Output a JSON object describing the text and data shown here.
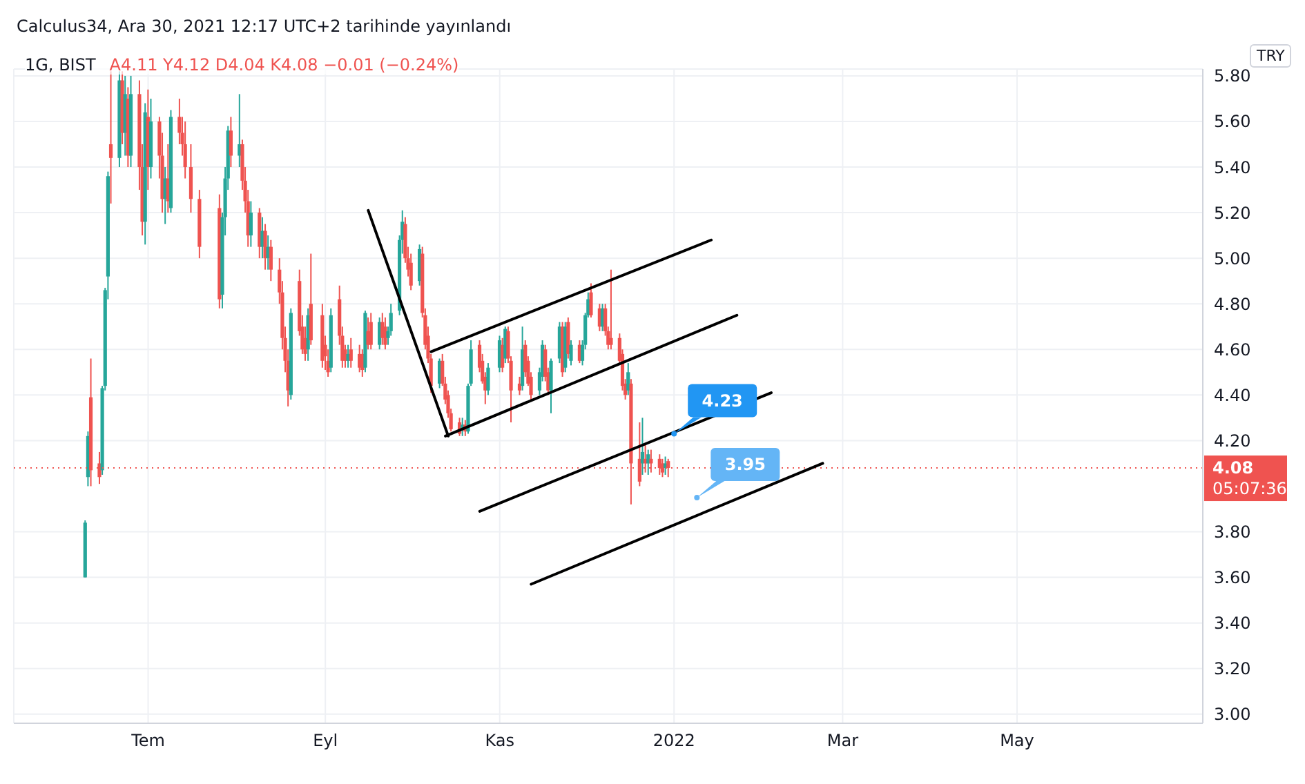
{
  "chart_data": {
    "type": "candlestick",
    "title": "1G, BIST",
    "subtitle": "A4.11 Y4.12 D4.04 K4.08 −0.01 (−0.24%)",
    "annotations": [
      "Calculus34, Ara 30, 2021 12:17 UTC+2 tarihinde yayınlandı",
      "TRY",
      "05:07:36",
      {
        "text": "4.23",
        "x": "2022-01-01",
        "y": 4.23
      },
      {
        "text": "3.95",
        "x": "2022-01-09",
        "y": 3.95
      }
    ],
    "colors": [
      "#26a69a",
      "#26a69a",
      "#ef5350",
      "#ef5350",
      "#26a69a",
      "#26a69a",
      "#26a69a",
      "#ef5350",
      "#26a69a",
      "#ef5350",
      "#26a69a",
      "#ef5350",
      "#26a69a",
      "#ef5350",
      "#ef5350",
      "#26a69a",
      "#ef5350",
      "#26a69a",
      "#ef5350",
      "#ef5350",
      "#26a69a",
      "#ef5350",
      "#26a69a",
      "#ef5350",
      "#ef5350",
      "#ef5350",
      "#ef5350",
      "#ef5350",
      "#ef5350",
      "#26a69a",
      "#26a69a",
      "#26a69a",
      "#ef5350",
      "#26a69a",
      "#ef5350",
      "#ef5350",
      "#ef5350",
      "#26a69a",
      "#ef5350",
      "#26a69a",
      "#ef5350",
      "#26a69a",
      "#ef5350",
      "#ef5350",
      "#ef5350",
      "#ef5350",
      "#ef5350",
      "#26a69a",
      "#ef5350",
      "#ef5350",
      "#ef5350",
      "#26a69a",
      "#ef5350",
      "#ef5350",
      "#ef5350",
      "#ef5350",
      "#26a69a",
      "#ef5350",
      "#ef5350",
      "#ef5350",
      "#26a69a",
      "#ef5350",
      "#ef5350",
      "#ef5350",
      "#26a69a",
      "#ef5350",
      "#ef5350",
      "#26a69a",
      "#ef5350",
      "#ef5350",
      "#26a69a",
      "#26a69a",
      "#26a69a",
      "#26a69a",
      "#ef5350",
      "#ef5350",
      "#ef5350",
      "#26a69a",
      "#ef5350",
      "#ef5350",
      "#ef5350",
      "#ef5350",
      "#26a69a",
      "#ef5350",
      "#ef5350",
      "#ef5350",
      "#ef5350",
      "#ef5350",
      "#26a69a",
      "#ef5350",
      "#26a69a",
      "#26a69a",
      "#ef5350",
      "#ef5350",
      "#ef5350",
      "#26a69a",
      "#26a69a",
      "#ef5350",
      "#26a69a",
      "#ef5350",
      "#ef5350",
      "#ef5350",
      "#26a69a",
      "#ef5350",
      "#ef5350",
      "#ef5350",
      "#26a69a",
      "#26a69a",
      "#ef5350",
      "#ef5350",
      "#26a69a",
      "#26a69a",
      "#ef5350",
      "#26a69a",
      "#ef5350",
      "#26a69a",
      "#ef5350",
      "#26a69a",
      "#26a69a",
      "#26a69a",
      "#ef5350",
      "#ef5350",
      "#26a69a",
      "#ef5350",
      "#ef5350",
      "#ef5350",
      "#ef5350",
      "#ef5350",
      "#ef5350",
      "#26a69a",
      "#ef5350",
      "#ef5350",
      "#26a69a",
      "#ef5350",
      "#26a69a",
      "#ef5350",
      "#ef5350",
      "#ef5350",
      "#26a69a",
      "#ef5350"
    ],
    "x": [
      "2021-06-09",
      "2021-06-10",
      "2021-06-11",
      "2021-06-14",
      "2021-06-15",
      "2021-06-16",
      "2021-06-17",
      "2021-06-18",
      "2021-06-21",
      "2021-06-22",
      "2021-06-23",
      "2021-06-24",
      "2021-06-25",
      "2021-06-28",
      "2021-06-29",
      "2021-06-30",
      "2021-07-01",
      "2021-07-02",
      "2021-07-05",
      "2021-07-06",
      "2021-07-07",
      "2021-07-08",
      "2021-07-09",
      "2021-07-12",
      "2021-07-13",
      "2021-07-14",
      "2021-07-16",
      "2021-07-19",
      "2021-07-26",
      "2021-07-27",
      "2021-07-28",
      "2021-07-29",
      "2021-07-30",
      "2021-08-02",
      "2021-08-03",
      "2021-08-04",
      "2021-08-05",
      "2021-08-06",
      "2021-08-09",
      "2021-08-10",
      "2021-08-11",
      "2021-08-12",
      "2021-08-13",
      "2021-08-16",
      "2021-08-17",
      "2021-08-18",
      "2021-08-19",
      "2021-08-20",
      "2021-08-23",
      "2021-08-24",
      "2021-08-25",
      "2021-08-26",
      "2021-08-27",
      "2021-08-31",
      "2021-09-01",
      "2021-09-02",
      "2021-09-03",
      "2021-09-06",
      "2021-09-07",
      "2021-09-08",
      "2021-09-09",
      "2021-09-10",
      "2021-09-13",
      "2021-09-14",
      "2021-09-15",
      "2021-09-16",
      "2021-09-17",
      "2021-09-20",
      "2021-09-21",
      "2021-09-22",
      "2021-09-23",
      "2021-09-24",
      "2021-09-27",
      "2021-09-28",
      "2021-09-29",
      "2021-09-30",
      "2021-10-01",
      "2021-10-04",
      "2021-10-05",
      "2021-10-06",
      "2021-10-07",
      "2021-10-08",
      "2021-10-11",
      "2021-10-12",
      "2021-10-13",
      "2021-10-14",
      "2021-10-15",
      "2021-10-18",
      "2021-10-19",
      "2021-10-20",
      "2021-10-21",
      "2021-10-22",
      "2021-10-25",
      "2021-10-26",
      "2021-10-27",
      "2021-10-28",
      "2021-11-01",
      "2021-11-02",
      "2021-11-03",
      "2021-11-04",
      "2021-11-05",
      "2021-11-08",
      "2021-11-09",
      "2021-11-10",
      "2021-11-11",
      "2021-11-12",
      "2021-11-15",
      "2021-11-16",
      "2021-11-17",
      "2021-11-18",
      "2021-11-19",
      "2021-11-22",
      "2021-11-23",
      "2021-11-24",
      "2021-11-25",
      "2021-11-26",
      "2021-11-29",
      "2021-11-30",
      "2021-12-01",
      "2021-12-02",
      "2021-12-03",
      "2021-12-06",
      "2021-12-07",
      "2021-12-08",
      "2021-12-09",
      "2021-12-10",
      "2021-12-13",
      "2021-12-14",
      "2021-12-15",
      "2021-12-16",
      "2021-12-17",
      "2021-12-20",
      "2021-12-21",
      "2021-12-22",
      "2021-12-23",
      "2021-12-24",
      "2021-12-27",
      "2021-12-28",
      "2021-12-29",
      "2021-12-30"
    ],
    "ohlc": [
      [
        3.6,
        3.85,
        3.6,
        3.84
      ],
      [
        4.04,
        4.24,
        4.0,
        4.22
      ],
      [
        4.39,
        4.56,
        4.0,
        4.07
      ],
      [
        4.1,
        4.15,
        4.01,
        4.04
      ],
      [
        4.07,
        4.44,
        4.05,
        4.43
      ],
      [
        4.44,
        4.87,
        4.42,
        4.86
      ],
      [
        4.92,
        5.38,
        4.82,
        5.36
      ],
      [
        5.5,
        5.82,
        5.24,
        5.44
      ],
      [
        5.44,
        5.82,
        5.4,
        5.78
      ],
      [
        5.78,
        5.82,
        5.5,
        5.55
      ],
      [
        5.55,
        5.8,
        5.45,
        5.72
      ],
      [
        5.7,
        5.75,
        5.4,
        5.45
      ],
      [
        5.45,
        5.8,
        5.4,
        5.72
      ],
      [
        5.72,
        5.78,
        5.3,
        5.4
      ],
      [
        5.4,
        5.5,
        5.1,
        5.16
      ],
      [
        5.16,
        5.68,
        5.06,
        5.64
      ],
      [
        5.62,
        5.74,
        5.3,
        5.4
      ],
      [
        5.4,
        5.7,
        5.35,
        5.6
      ],
      [
        5.6,
        5.62,
        5.35,
        5.45
      ],
      [
        5.45,
        5.55,
        5.2,
        5.26
      ],
      [
        5.26,
        5.4,
        5.15,
        5.35
      ],
      [
        5.35,
        5.5,
        5.2,
        5.25
      ],
      [
        5.22,
        5.65,
        5.2,
        5.62
      ],
      [
        5.62,
        5.7,
        5.5,
        5.55
      ],
      [
        5.55,
        5.62,
        5.45,
        5.5
      ],
      [
        5.5,
        5.6,
        5.35,
        5.4
      ],
      [
        5.4,
        5.5,
        5.2,
        5.26
      ],
      [
        5.26,
        5.3,
        5.0,
        5.05
      ],
      [
        5.22,
        5.28,
        4.78,
        4.82
      ],
      [
        4.84,
        5.2,
        4.78,
        5.18
      ],
      [
        5.18,
        5.4,
        5.1,
        5.35
      ],
      [
        5.35,
        5.58,
        5.3,
        5.56
      ],
      [
        5.56,
        5.62,
        5.4,
        5.45
      ],
      [
        5.45,
        5.72,
        5.4,
        5.5
      ],
      [
        5.5,
        5.52,
        5.3,
        5.34
      ],
      [
        5.34,
        5.4,
        5.2,
        5.25
      ],
      [
        5.25,
        5.3,
        5.05,
        5.1
      ],
      [
        5.1,
        5.25,
        5.05,
        5.2
      ],
      [
        5.2,
        5.22,
        5.0,
        5.05
      ],
      [
        5.05,
        5.18,
        5.0,
        5.12
      ],
      [
        5.12,
        5.15,
        4.95,
        5.0
      ],
      [
        5.0,
        5.1,
        4.95,
        5.05
      ],
      [
        5.05,
        5.08,
        4.9,
        4.95
      ],
      [
        4.95,
        5.0,
        4.8,
        4.85
      ],
      [
        4.85,
        4.9,
        4.6,
        4.65
      ],
      [
        4.65,
        4.7,
        4.5,
        4.55
      ],
      [
        4.55,
        4.6,
        4.35,
        4.42
      ],
      [
        4.4,
        4.78,
        4.38,
        4.76
      ],
      [
        4.9,
        4.95,
        4.66,
        4.68
      ],
      [
        4.7,
        4.75,
        4.58,
        4.6
      ],
      [
        4.65,
        4.7,
        4.55,
        4.58
      ],
      [
        4.6,
        4.78,
        4.55,
        4.75
      ],
      [
        4.8,
        5.02,
        4.62,
        4.64
      ],
      [
        4.75,
        4.8,
        4.52,
        4.55
      ],
      [
        4.62,
        4.66,
        4.51,
        4.57
      ],
      [
        4.55,
        4.6,
        4.48,
        4.5
      ],
      [
        4.52,
        4.78,
        4.5,
        4.75
      ],
      [
        4.82,
        4.88,
        4.62,
        4.66
      ],
      [
        4.66,
        4.7,
        4.52,
        4.55
      ],
      [
        4.6,
        4.62,
        4.52,
        4.55
      ],
      [
        4.55,
        4.62,
        4.52,
        4.58
      ],
      [
        4.6,
        4.65,
        4.52,
        4.55
      ],
      [
        4.58,
        4.62,
        4.5,
        4.52
      ],
      [
        4.58,
        4.6,
        4.48,
        4.51
      ],
      [
        4.52,
        4.77,
        4.5,
        4.76
      ],
      [
        4.68,
        4.74,
        4.6,
        4.62
      ],
      [
        4.72,
        4.76,
        4.6,
        4.62
      ],
      [
        4.62,
        4.74,
        4.6,
        4.72
      ],
      [
        4.72,
        4.76,
        4.62,
        4.65
      ],
      [
        4.7,
        4.74,
        4.6,
        4.62
      ],
      [
        4.65,
        4.7,
        4.62,
        4.68
      ],
      [
        4.68,
        4.8,
        4.66,
        4.76
      ],
      [
        4.77,
        5.1,
        4.75,
        5.08
      ],
      [
        5.08,
        5.21,
        5.02,
        5.16
      ],
      [
        5.15,
        5.18,
        4.98,
        5.0
      ],
      [
        5.0,
        5.05,
        4.92,
        4.95
      ],
      [
        4.98,
        5.02,
        4.86,
        4.88
      ],
      [
        4.9,
        5.06,
        4.88,
        5.04
      ],
      [
        5.02,
        5.05,
        4.74,
        4.76
      ],
      [
        4.75,
        4.78,
        4.6,
        4.62
      ],
      [
        4.66,
        4.7,
        4.54,
        4.56
      ],
      [
        4.56,
        4.58,
        4.41,
        4.44
      ],
      [
        4.45,
        4.56,
        4.43,
        4.55
      ],
      [
        4.55,
        4.58,
        4.44,
        4.45
      ],
      [
        4.45,
        4.48,
        4.36,
        4.38
      ],
      [
        4.4,
        4.42,
        4.3,
        4.32
      ],
      [
        4.32,
        4.34,
        4.24,
        4.25
      ],
      [
        4.28,
        4.3,
        4.22,
        4.23
      ],
      [
        4.25,
        4.3,
        4.22,
        4.27
      ],
      [
        4.27,
        4.29,
        4.22,
        4.24
      ],
      [
        4.24,
        4.45,
        4.23,
        4.44
      ],
      [
        4.45,
        4.64,
        4.44,
        4.6
      ],
      [
        4.62,
        4.64,
        4.5,
        4.52
      ],
      [
        4.55,
        4.58,
        4.45,
        4.46
      ],
      [
        4.48,
        4.5,
        4.36,
        4.42
      ],
      [
        4.42,
        4.54,
        4.4,
        4.52
      ],
      [
        4.52,
        4.66,
        4.5,
        4.64
      ],
      [
        4.62,
        4.65,
        4.5,
        4.52
      ],
      [
        4.56,
        4.7,
        4.54,
        4.69
      ],
      [
        4.68,
        4.7,
        4.54,
        4.56
      ],
      [
        4.55,
        4.57,
        4.28,
        4.42
      ],
      [
        4.45,
        4.48,
        4.4,
        4.42
      ],
      [
        4.44,
        4.7,
        4.42,
        4.6
      ],
      [
        4.62,
        4.64,
        4.48,
        4.5
      ],
      [
        4.55,
        4.57,
        4.44,
        4.45
      ],
      [
        4.48,
        4.5,
        4.38,
        4.4
      ],
      [
        4.42,
        4.52,
        4.4,
        4.5
      ],
      [
        4.48,
        4.64,
        4.46,
        4.62
      ],
      [
        4.6,
        4.62,
        4.46,
        4.48
      ],
      [
        4.5,
        4.52,
        4.4,
        4.42
      ],
      [
        4.42,
        4.56,
        4.32,
        4.55
      ],
      [
        4.56,
        4.72,
        4.54,
        4.7
      ],
      [
        4.7,
        4.72,
        4.48,
        4.5
      ],
      [
        4.52,
        4.72,
        4.5,
        4.7
      ],
      [
        4.72,
        4.74,
        4.56,
        4.58
      ],
      [
        4.55,
        4.64,
        4.53,
        4.62
      ],
      [
        4.62,
        4.64,
        4.54,
        4.55
      ],
      [
        4.55,
        4.64,
        4.53,
        4.62
      ],
      [
        4.62,
        4.76,
        4.6,
        4.75
      ],
      [
        4.75,
        4.85,
        4.74,
        4.82
      ],
      [
        4.85,
        4.89,
        4.74,
        4.75
      ],
      [
        4.78,
        4.8,
        4.68,
        4.7
      ],
      [
        4.7,
        4.8,
        4.68,
        4.78
      ],
      [
        4.78,
        4.8,
        4.66,
        4.68
      ],
      [
        4.68,
        4.7,
        4.6,
        4.62
      ],
      [
        4.65,
        4.95,
        4.6,
        4.62
      ],
      [
        4.65,
        4.67,
        4.54,
        4.55
      ],
      [
        4.58,
        4.6,
        4.42,
        4.44
      ],
      [
        4.45,
        4.47,
        4.38,
        4.4
      ],
      [
        4.42,
        4.54,
        4.4,
        4.5
      ],
      [
        4.45,
        4.47,
        3.92,
        4.1
      ],
      [
        4.12,
        4.28,
        4.0,
        4.02
      ],
      [
        4.1,
        4.3,
        4.05,
        4.15
      ],
      [
        4.12,
        4.18,
        4.06,
        4.1
      ],
      [
        4.1,
        4.16,
        4.05,
        4.14
      ],
      [
        4.12,
        4.16,
        4.06,
        4.1
      ],
      [
        4.12,
        4.14,
        4.05,
        4.08
      ],
      [
        4.1,
        4.12,
        4.04,
        4.06
      ],
      [
        4.08,
        4.13,
        4.05,
        4.1
      ],
      [
        4.11,
        4.12,
        4.04,
        4.08
      ]
    ],
    "series": [
      {
        "type": "line",
        "color": "#000000",
        "x": [
          "2021-09-16",
          "2021-10-14"
        ],
        "values": [
          5.21,
          4.22
        ]
      },
      {
        "type": "line",
        "color": "#000000",
        "x": [
          "2021-10-08",
          "2022-01-14"
        ],
        "values": [
          4.59,
          5.08
        ]
      },
      {
        "type": "line",
        "color": "#000000",
        "x": [
          "2021-10-13",
          "2022-01-23"
        ],
        "values": [
          4.22,
          4.75
        ]
      },
      {
        "type": "line",
        "color": "#000000",
        "x": [
          "2021-10-25",
          "2022-02-04"
        ],
        "values": [
          3.89,
          4.41
        ]
      },
      {
        "type": "line",
        "color": "#000000",
        "x": [
          "2021-11-12",
          "2022-02-22"
        ],
        "values": [
          3.57,
          4.1
        ]
      }
    ],
    "ref_lines": [
      {
        "axis": "y",
        "value": 4.08,
        "label": "4.08",
        "color": "#ef5350",
        "line_style": "dotted"
      }
    ],
    "xlim": [
      "2021-05-15",
      "2022-07-05"
    ],
    "xticks": [
      {
        "value": "2021-07-01",
        "label": "Tem"
      },
      {
        "value": "2021-09-01",
        "label": "Eyl"
      },
      {
        "value": "2021-11-01",
        "label": "Kas"
      },
      {
        "value": "2022-01-01",
        "label": "2022"
      },
      {
        "value": "2022-03-01",
        "label": "Mar"
      },
      {
        "value": "2022-05-01",
        "label": "May"
      }
    ],
    "ylim": [
      2.96,
      5.83
    ],
    "yticks": [
      {
        "value": 3,
        "label": "3.00"
      },
      {
        "value": 3.2,
        "label": "3.20"
      },
      {
        "value": 3.4,
        "label": "3.40"
      },
      {
        "value": 3.6,
        "label": "3.60"
      },
      {
        "value": 3.8,
        "label": "3.80"
      },
      {
        "value": 4.2,
        "label": "4.20"
      },
      {
        "value": 4.4,
        "label": "4.40"
      },
      {
        "value": 4.6,
        "label": "4.60"
      },
      {
        "value": 4.8,
        "label": "4.80"
      },
      {
        "value": 5,
        "label": "5.00"
      },
      {
        "value": 5.2,
        "label": "5.20"
      },
      {
        "value": 5.4,
        "label": "5.40"
      },
      {
        "value": 5.6,
        "label": "5.60"
      },
      {
        "value": 5.8,
        "label": "5.80"
      }
    ],
    "grid": true
  }
}
